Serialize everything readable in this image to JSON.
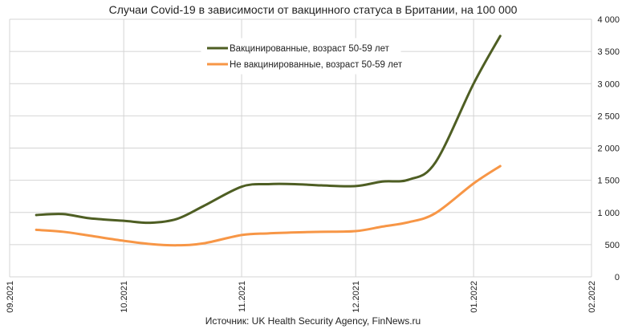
{
  "chart_data": {
    "type": "line",
    "title": "Случаи Covid-19 в зависимости от вакцинного статуса в Британии, на 100 000",
    "source": "Источник: UK Health Security Agency, FinNews.ru",
    "xlabel": "",
    "ylabel": "",
    "x_ticks": [
      "09.2021",
      "10.2021",
      "11.2021",
      "12.2021",
      "01.2022",
      "02.2022"
    ],
    "x": [
      "2021-09-08",
      "2021-09-15",
      "2021-09-22",
      "2021-10-01",
      "2021-10-08",
      "2021-10-15",
      "2021-10-22",
      "2021-11-01",
      "2021-11-08",
      "2021-11-15",
      "2021-11-22",
      "2021-12-01",
      "2021-12-08",
      "2021-12-15",
      "2021-12-22",
      "2022-01-01",
      "2022-01-08"
    ],
    "y_ticks": [
      "0",
      "500",
      "1 000",
      "1 500",
      "2 000",
      "2 500",
      "3 000",
      "3 500",
      "4 000"
    ],
    "ylim": [
      0,
      4000
    ],
    "y_axis_side": "right",
    "grid": true,
    "legend_position": "top-center",
    "series": [
      {
        "name": "Вакцинированные, возраст 50-59 лет",
        "color": "#4e5e23",
        "values": [
          960,
          975,
          910,
          870,
          840,
          900,
          1100,
          1400,
          1440,
          1440,
          1420,
          1410,
          1480,
          1510,
          1780,
          3000,
          3740
        ]
      },
      {
        "name": "Не вакцинированные, возраст 50-59 лет",
        "color": "#f79646",
        "values": [
          730,
          700,
          640,
          560,
          510,
          490,
          520,
          650,
          675,
          690,
          700,
          710,
          780,
          850,
          990,
          1450,
          1720
        ]
      }
    ]
  }
}
